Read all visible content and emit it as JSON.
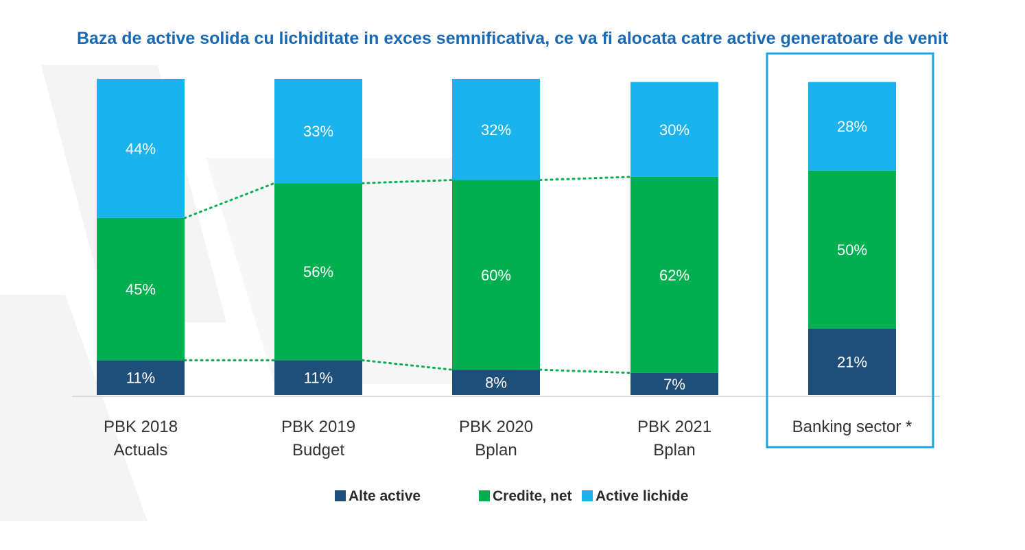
{
  "colors": {
    "alte_active": "#1f4e79",
    "credite_net": "#00b050",
    "active_lichide": "#1ab3ee",
    "title": "#1a69b4",
    "highlight_box": "#1aa6e0",
    "connector": "#00b050",
    "baseline": "#d9d9d9",
    "watermark": "#f2f2f2"
  },
  "chart_data": {
    "type": "bar",
    "stacked": true,
    "percent": true,
    "title": "Baza de active solida cu lichiditate in exces semnificativa, ce va fi alocata catre active generatoare de venit",
    "xlabel": "",
    "ylabel": "",
    "ylim": [
      0,
      100
    ],
    "grid": false,
    "legend_position": "bottom",
    "categories": [
      [
        "PBK 2018",
        "Actuals"
      ],
      [
        "PBK 2019",
        "Budget"
      ],
      [
        "PBK 2020",
        "Bplan"
      ],
      [
        "PBK 2021",
        "Bplan"
      ],
      [
        "Banking sector *"
      ]
    ],
    "highlighted_category_index": 4,
    "series": [
      {
        "name": "Alte active",
        "color_key": "alte_active",
        "values": [
          11,
          11,
          8,
          7,
          21
        ],
        "labels": [
          "11%",
          "11%",
          "8%",
          "7%",
          "21%"
        ]
      },
      {
        "name": "Credite, net",
        "color_key": "credite_net",
        "values": [
          45,
          56,
          60,
          62,
          50
        ],
        "labels": [
          "45%",
          "56%",
          "60%",
          "62%",
          "50%"
        ]
      },
      {
        "name": "Active lichide",
        "color_key": "active_lichide",
        "values": [
          44,
          33,
          32,
          30,
          28
        ],
        "labels": [
          "44%",
          "33%",
          "32%",
          "30%",
          "28%"
        ]
      }
    ],
    "connectors": "dotted lines linking the Credite, net segment tops and bottoms between PBK 2018 and PBK 2021"
  }
}
